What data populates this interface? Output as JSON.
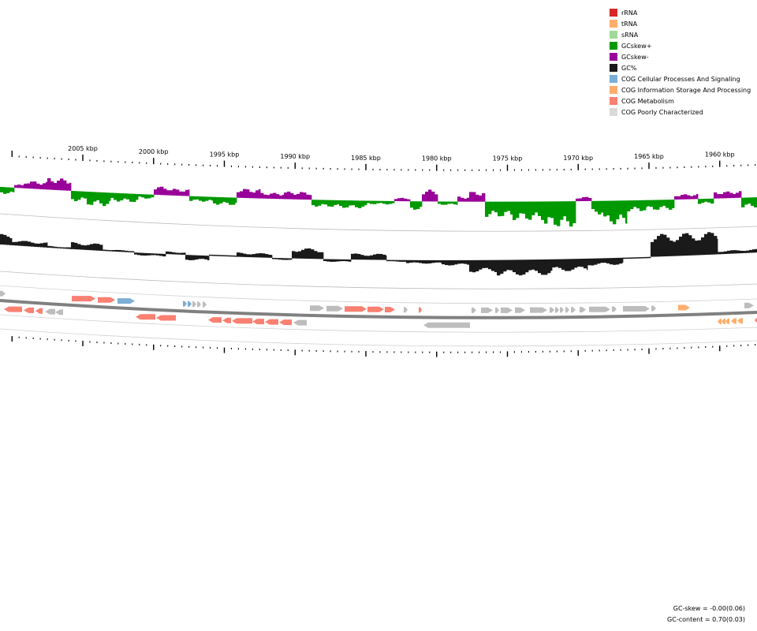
{
  "legend": [
    {
      "label": "rRNA",
      "color": "#d62728"
    },
    {
      "label": "tRNA",
      "color": "#fdae6b"
    },
    {
      "label": "sRNA",
      "color": "#a1d99b"
    },
    {
      "label": "GCskew+",
      "color": "#009900"
    },
    {
      "label": "GCskew-",
      "color": "#990099"
    },
    {
      "label": "GC%",
      "color": "#1a1a1a"
    },
    {
      "label": "COG Cellular Processes And Signaling",
      "color": "#7bafd4"
    },
    {
      "label": "COG Information Storage And Processing",
      "color": "#fdae6b"
    },
    {
      "label": "COG Metabolism",
      "color": "#fa8072"
    },
    {
      "label": "COG Poorly Characterized",
      "color": "#d9d9d9"
    }
  ],
  "scale": {
    "ticks": [
      {
        "label": "2005 kbp",
        "kbp": 2005
      },
      {
        "label": "2000 kbp",
        "kbp": 2000
      },
      {
        "label": "1995 kbp",
        "kbp": 1995
      },
      {
        "label": "1990 kbp",
        "kbp": 1990
      },
      {
        "label": "1985 kbp",
        "kbp": 1985
      },
      {
        "label": "1980 kbp",
        "kbp": 1980
      },
      {
        "label": "1975 kbp",
        "kbp": 1975
      },
      {
        "label": "1970 kbp",
        "kbp": 1970
      },
      {
        "label": "1965 kbp",
        "kbp": 1965
      },
      {
        "label": "1960 kbp",
        "kbp": 1960
      }
    ]
  },
  "stats": {
    "gc_skew": "GC-skew = -0.00(0.06)",
    "gc_content": "GC-content = 0.70(0.03)"
  }
}
